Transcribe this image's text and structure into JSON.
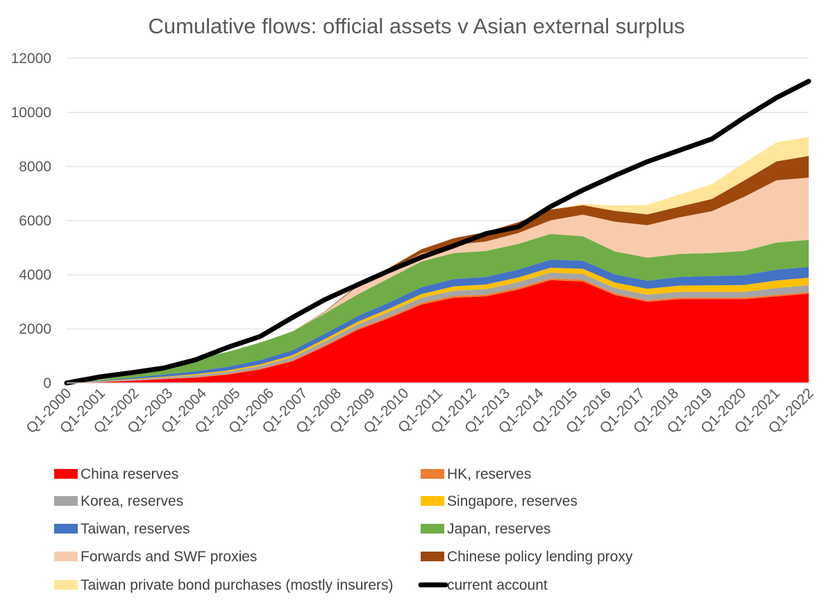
{
  "chart_data": {
    "type": "area",
    "stacked": true,
    "title": "Cumulative flows: official assets v Asian external surplus",
    "xlabel": "",
    "ylabel": "",
    "ylim": [
      0,
      12000
    ],
    "yticks": [
      0,
      2000,
      4000,
      6000,
      8000,
      10000,
      12000
    ],
    "grid": true,
    "x_start": "Q1-2000",
    "x_end": "Q4-2022",
    "x_tick_labels": [
      "Q1-2000",
      "Q1-2001",
      "Q1-2002",
      "Q1-2003",
      "Q1-2004",
      "Q1-2005",
      "Q1-2006",
      "Q1-2007",
      "Q1-2008",
      "Q1-2009",
      "Q1-2010",
      "Q1-2011",
      "Q1-2012",
      "Q1-2013",
      "Q1-2014",
      "Q1-2015",
      "Q1-2016",
      "Q1-2017",
      "Q1-2018",
      "Q1-2019",
      "Q1-2020",
      "Q1-2021",
      "Q1-2022"
    ],
    "legend_position": "bottom",
    "series": [
      {
        "name": "China reserves",
        "color": "#ff0000",
        "values": [
          0,
          30,
          80,
          140,
          200,
          310,
          500,
          800,
          1350,
          1950,
          2400,
          2900,
          3150,
          3200,
          3450,
          3800,
          3750,
          3250,
          3000,
          3100,
          3100,
          3100,
          3200,
          3300
        ]
      },
      {
        "name": "HK, reserves",
        "color": "#ed7d31",
        "values": [
          0,
          5,
          10,
          15,
          20,
          25,
          30,
          35,
          40,
          50,
          60,
          70,
          70,
          70,
          70,
          70,
          70,
          60,
          60,
          60,
          60,
          60,
          60,
          60
        ]
      },
      {
        "name": "Korea, reserves",
        "color": "#a5a5a5",
        "values": [
          0,
          20,
          35,
          50,
          70,
          85,
          100,
          120,
          140,
          150,
          170,
          180,
          190,
          200,
          210,
          210,
          210,
          200,
          200,
          210,
          210,
          210,
          250,
          250
        ]
      },
      {
        "name": "Singapore, reserves",
        "color": "#ffc000",
        "values": [
          0,
          10,
          20,
          25,
          35,
          45,
          55,
          70,
          90,
          100,
          120,
          140,
          160,
          170,
          170,
          180,
          190,
          200,
          220,
          230,
          240,
          250,
          280,
          280
        ]
      },
      {
        "name": "Taiwan, reserves",
        "color": "#4472c4",
        "values": [
          0,
          20,
          50,
          80,
          110,
          135,
          160,
          180,
          200,
          210,
          230,
          250,
          270,
          280,
          290,
          300,
          300,
          300,
          300,
          320,
          340,
          360,
          400,
          400
        ]
      },
      {
        "name": "Japan, reserves",
        "color": "#70ad47",
        "values": [
          0,
          30,
          100,
          250,
          450,
          550,
          650,
          700,
          750,
          800,
          900,
          950,
          960,
          960,
          950,
          950,
          900,
          850,
          850,
          850,
          850,
          900,
          1000,
          1000
        ]
      },
      {
        "name": "Forwards and SWF proxies",
        "color": "#f8cbad",
        "values": [
          0,
          0,
          0,
          0,
          0,
          0,
          0,
          0,
          50,
          300,
          300,
          300,
          300,
          350,
          400,
          500,
          800,
          1100,
          1200,
          1350,
          1550,
          2000,
          2300,
          2300
        ]
      },
      {
        "name": "Chinese policy lending proxy",
        "color": "#9e480e",
        "values": [
          0,
          0,
          0,
          0,
          0,
          0,
          0,
          0,
          20,
          40,
          80,
          150,
          250,
          350,
          400,
          400,
          350,
          400,
          400,
          400,
          450,
          600,
          700,
          800
        ]
      },
      {
        "name": "Taiwan private bond purchases (mostly insurers)",
        "color": "#ffe699",
        "values": [
          0,
          0,
          0,
          0,
          0,
          0,
          0,
          0,
          0,
          0,
          0,
          0,
          0,
          0,
          0,
          0,
          50,
          200,
          350,
          450,
          550,
          650,
          700,
          700
        ]
      }
    ],
    "line_series": {
      "name": "current account",
      "color": "#000000",
      "values": [
        0,
        220,
        380,
        550,
        860,
        1320,
        1720,
        2420,
        3080,
        3620,
        4150,
        4650,
        5070,
        5520,
        5770,
        6520,
        7130,
        7670,
        8180,
        8600,
        9020,
        9810,
        10540,
        11150
      ]
    }
  }
}
